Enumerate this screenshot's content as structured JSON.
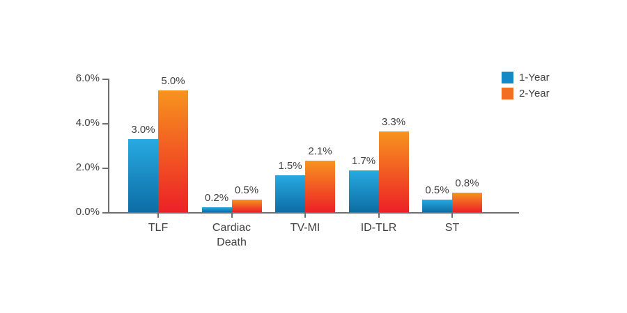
{
  "chart_data": {
    "type": "bar",
    "title": "",
    "xlabel": "",
    "ylabel": "",
    "categories": [
      "TLF",
      "Cardiac Death",
      "TV-MI",
      "ID-TLR",
      "ST"
    ],
    "series": [
      {
        "name": "1-Year",
        "values": [
          3.0,
          0.2,
          1.5,
          1.7,
          0.5
        ],
        "labels": [
          "3.0%",
          "0.2%",
          "1.5%",
          "1.7%",
          "0.5%"
        ],
        "color_top": "#27aae1",
        "color_bottom": "#0d6da5",
        "legend_color": "#1489c5"
      },
      {
        "name": "2-Year",
        "values": [
          5.0,
          0.5,
          2.1,
          3.3,
          0.8
        ],
        "labels": [
          "5.0%",
          "0.5%",
          "2.1%",
          "3.3%",
          "0.8%"
        ],
        "color_top": "#f7941e",
        "color_bottom": "#ec2127",
        "legend_color": "#f26f21"
      }
    ],
    "ylim": [
      0,
      6
    ],
    "yticks": [
      {
        "label": "0.0%",
        "value": 0
      },
      {
        "label": "2.0%",
        "value": 2
      },
      {
        "label": "4.0%",
        "value": 4
      },
      {
        "label": "6.0%",
        "value": 6
      }
    ],
    "grid": false,
    "legend_position": "top-right"
  },
  "colors": {
    "text": "#414042",
    "axis": "#6d6e71",
    "background": "#ffffff"
  }
}
